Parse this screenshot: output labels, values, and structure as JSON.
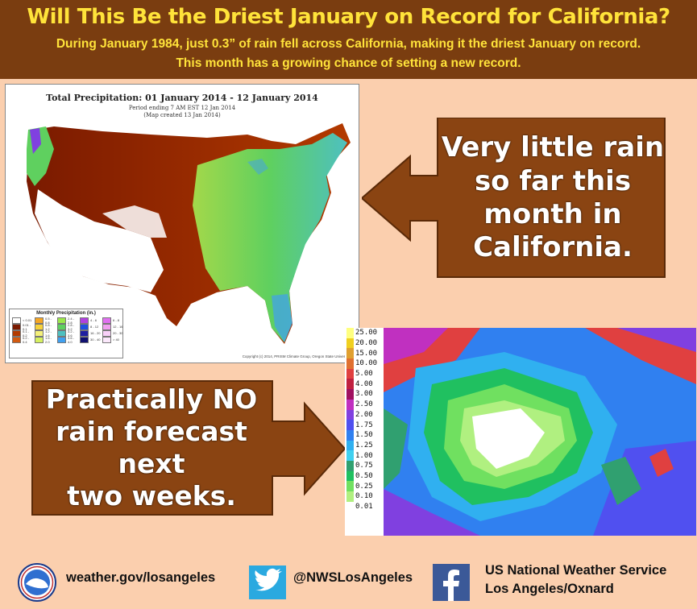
{
  "header": {
    "title": "Will This Be the Driest January on Record for California?",
    "line1": "During January 1984, just 0.3” of rain fell across California, making it the driest January on record.",
    "line2": "This month has a growing chance of setting a new record."
  },
  "precip_map": {
    "title": "Total Precipitation: 01 January 2014 - 12 January 2014",
    "subtitle1": "Period ending 7 AM EST 12 Jan 2014",
    "subtitle2": "(Map created 13 Jan 2014)",
    "legend_title": "Monthly Precipitation (in.)",
    "legend": [
      {
        "label": "< 0.01",
        "color": "#ffffff"
      },
      {
        "label": "0.5 - 0.8",
        "color": "#f5a623"
      },
      {
        "label": "2.4 - 2.8",
        "color": "#9be84a"
      },
      {
        "label": "4 - 6",
        "color": "#b040e0"
      },
      {
        "label": "6 - 8",
        "color": "#e070f0"
      },
      {
        "label": "0.01 - 0.1",
        "color": "#7a1a00"
      },
      {
        "label": "0.8 - 1.2",
        "color": "#f7d23a"
      },
      {
        "label": "2.8 - 3.2",
        "color": "#5fd05f"
      },
      {
        "label": "8 - 12",
        "color": "#2050e0"
      },
      {
        "label": "12 - 16",
        "color": "#f0a0f0"
      },
      {
        "label": "0.1 - 0.2",
        "color": "#b33a00"
      },
      {
        "label": "1.2 - 1.6",
        "color": "#f4f07a"
      },
      {
        "label": "3.2 - 3.6",
        "color": "#4ec0c0"
      },
      {
        "label": "16 - 20",
        "color": "#2020a0"
      },
      {
        "label": "20 - 30",
        "color": "#f8d0f8"
      },
      {
        "label": "0.2 - 0.4",
        "color": "#d25a10"
      },
      {
        "label": "1.6 - 2.0",
        "color": "#d6f060"
      },
      {
        "label": "3.6 - 4.0",
        "color": "#40a0f0"
      },
      {
        "label": "30 - 40",
        "color": "#101070"
      },
      {
        "label": "> 40",
        "color": "#fbe8fb"
      }
    ],
    "copyright": "Copyright (c) 2014, PRISM Climate Group, Oregon State University"
  },
  "callout_right": {
    "lines": [
      "Very little rain",
      "so far this",
      "month in",
      "California."
    ],
    "color": "#8a4412"
  },
  "callout_left": {
    "lines": [
      "Practically NO",
      "rain forecast next",
      "two weeks."
    ],
    "color": "#8a4412"
  },
  "forecast_scale": [
    {
      "label": "25.00",
      "color": "#ffff80"
    },
    {
      "label": "20.00",
      "color": "#f0d020"
    },
    {
      "label": "15.00",
      "color": "#e0a030"
    },
    {
      "label": "10.00",
      "color": "#e07030"
    },
    {
      "label": "5.00",
      "color": "#e04040"
    },
    {
      "label": "4.00",
      "color": "#c02040"
    },
    {
      "label": "3.00",
      "color": "#a01060"
    },
    {
      "label": "2.50",
      "color": "#c030c0"
    },
    {
      "label": "2.00",
      "color": "#8040e0"
    },
    {
      "label": "1.75",
      "color": "#5050f0"
    },
    {
      "label": "1.50",
      "color": "#3080f0"
    },
    {
      "label": "1.25",
      "color": "#30b0f0"
    },
    {
      "label": "1.00",
      "color": "#40d0f0"
    },
    {
      "label": "0.75",
      "color": "#30a070"
    },
    {
      "label": "0.50",
      "color": "#20c060"
    },
    {
      "label": "0.25",
      "color": "#70e060"
    },
    {
      "label": "0.10",
      "color": "#b0f080"
    },
    {
      "label": "0.01",
      "color": "#ffffff"
    }
  ],
  "footer": {
    "website": "weather.gov/losangeles",
    "twitter": "@NWSLosAngeles",
    "org_line1": "US National Weather Service",
    "org_line2": "Los Angeles/Oxnard",
    "icons": [
      "nws-logo-icon",
      "twitter-bird-icon",
      "facebook-f-icon"
    ]
  }
}
